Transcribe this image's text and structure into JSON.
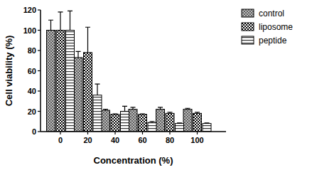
{
  "chart_data": {
    "type": "bar",
    "x_label": "Concentration (%)",
    "y_label": "Cell viability (%)",
    "categories": [
      "0",
      "20",
      "40",
      "60",
      "80",
      "100"
    ],
    "series": [
      {
        "name": "control",
        "color": "#555555",
        "values": [
          100,
          73,
          21,
          22,
          22,
          22
        ],
        "errors": [
          10,
          6,
          1,
          2,
          2,
          1
        ]
      },
      {
        "name": "liposome",
        "color": "#000000",
        "values": [
          100,
          78,
          17,
          17,
          18,
          18
        ],
        "errors": [
          18,
          25,
          0.5,
          0.5,
          1,
          1
        ]
      },
      {
        "name": "peptide",
        "color": "#333333",
        "values": [
          100,
          36,
          20,
          9,
          8,
          8
        ],
        "errors": [
          19,
          11,
          5,
          1,
          0.5,
          0.5
        ]
      }
    ],
    "ylim": [
      0,
      120
    ],
    "yticks": [
      0,
      20,
      40,
      60,
      80,
      100,
      120
    ],
    "grid": false,
    "legend": "right"
  }
}
